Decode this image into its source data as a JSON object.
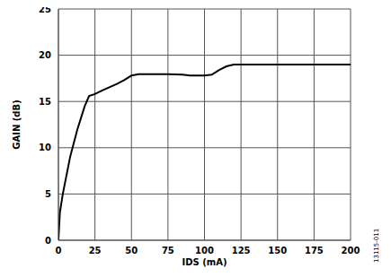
{
  "chart_data": {
    "type": "line",
    "x_label": "IDS (mA)",
    "y_label": "GAIN (dB)",
    "annotation": "13115-011",
    "x": [
      0,
      1,
      3,
      8,
      13,
      18,
      21,
      25,
      30,
      40,
      45,
      50,
      55,
      75,
      85,
      90,
      100,
      105,
      110,
      115,
      120,
      125,
      200
    ],
    "values": [
      0,
      3,
      5,
      9,
      12,
      14.5,
      15.6,
      15.8,
      16.2,
      16.9,
      17.3,
      17.8,
      17.95,
      17.95,
      17.9,
      17.8,
      17.8,
      17.9,
      18.4,
      18.8,
      19,
      19,
      19
    ],
    "color": "#000000",
    "xlim": [
      0,
      200
    ],
    "xticks": [
      0,
      25,
      50,
      75,
      100,
      125,
      150,
      175,
      200
    ],
    "ylim": [
      0,
      25
    ],
    "yticks": [
      0,
      5,
      10,
      15,
      20,
      25
    ],
    "grid": true
  }
}
